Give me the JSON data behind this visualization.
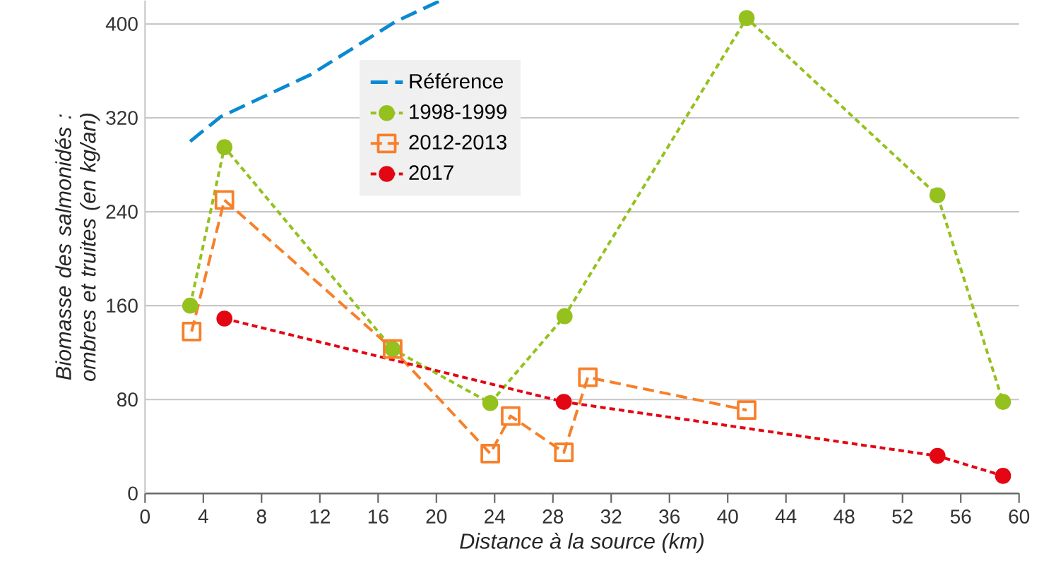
{
  "chart_data": {
    "type": "line",
    "xlabel": "Distance à la source (km)",
    "ylabel": "Biomasse des salmonidés : ombres et truites (en kg/an)",
    "xlim": [
      0,
      60
    ],
    "xticks": [
      0,
      4,
      8,
      12,
      16,
      20,
      24,
      28,
      32,
      36,
      40,
      44,
      48,
      52,
      56,
      60
    ],
    "ylim": [
      0,
      420
    ],
    "yticks": [
      0,
      80,
      160,
      240,
      320,
      400
    ],
    "grid": "y",
    "legend": "top",
    "series": [
      {
        "name": "Référence",
        "color": "#0a8ad2",
        "marker": "none",
        "line_style": "dashed",
        "x": [
          3.1,
          5.2,
          11.4,
          17.2,
          20.3
        ],
        "values": [
          300,
          321,
          357,
          402,
          420
        ]
      },
      {
        "name": "1998-1999",
        "color": "#95c11f",
        "marker": "circle",
        "line_style": "dotted",
        "x": [
          3.1,
          5.45,
          17.0,
          23.7,
          28.8,
          41.3,
          54.4,
          58.9
        ],
        "values": [
          160,
          295,
          123,
          77,
          151,
          405,
          254,
          78
        ]
      },
      {
        "name": "2012-2013",
        "color": "#f7802a",
        "marker": "square",
        "line_style": "dashed",
        "x": [
          3.2,
          5.45,
          17.0,
          23.7,
          25.1,
          28.75,
          30.4,
          41.3
        ],
        "values": [
          138,
          250,
          123,
          34,
          66,
          35,
          99,
          71
        ]
      },
      {
        "name": "2017",
        "color": "#e30613",
        "marker": "circle",
        "line_style": "dotted",
        "x": [
          5.45,
          28.75,
          54.4,
          58.9
        ],
        "values": [
          149,
          78,
          32,
          15
        ]
      }
    ]
  }
}
